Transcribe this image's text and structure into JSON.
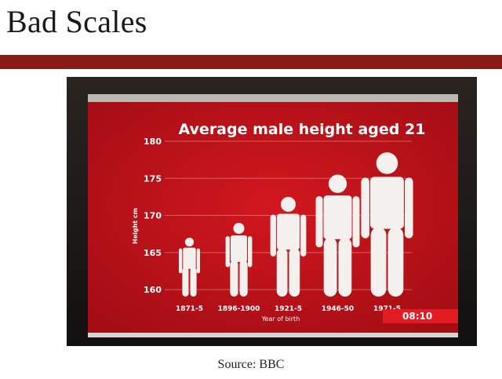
{
  "slide": {
    "title": "Bad Scales",
    "caption": "Source: BBC"
  },
  "colors": {
    "rule": "#8a1a14",
    "screen_red": "#c0141c",
    "figure": "#f4f0ee",
    "clock_bg": "#e31b22"
  },
  "broadcast": {
    "clock": "08:10"
  },
  "chart_data": {
    "type": "bar",
    "title": "Average male height aged 21",
    "xlabel": "Year of birth",
    "ylabel": "Height cm",
    "ylim": [
      158,
      180
    ],
    "yticks": [
      160,
      165,
      170,
      175,
      180
    ],
    "ytick_labels": [
      "160",
      "165",
      "170",
      "175",
      "180"
    ],
    "categories": [
      "1871-5",
      "1896-1900",
      "1921-5",
      "1946-50",
      "1971-5"
    ],
    "values": [
      167,
      169,
      172.5,
      175.5,
      178.5
    ],
    "grid": true,
    "marker": "human-figure-icon"
  }
}
